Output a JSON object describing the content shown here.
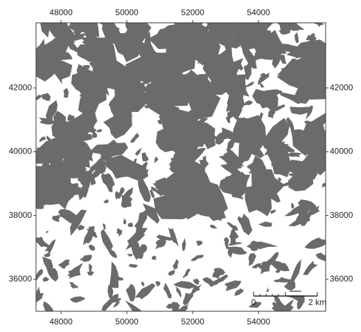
{
  "map": {
    "xlim": [
      47240,
      56040
    ],
    "ylim": [
      35000,
      44040
    ],
    "xticks": [
      48000,
      50000,
      52000,
      54000
    ],
    "yticks": [
      36000,
      38000,
      40000,
      42000
    ],
    "scale_bar": {
      "start_label": "0",
      "end_label": "2 km"
    }
  }
}
